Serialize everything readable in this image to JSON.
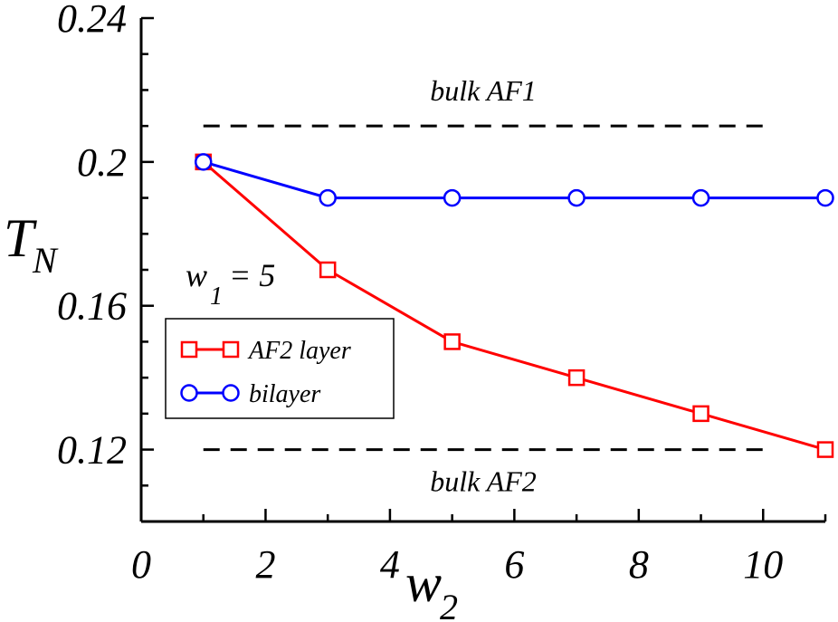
{
  "chart_data": {
    "type": "line",
    "title": "",
    "xlabel": "w",
    "xlabel_sub": "2",
    "ylabel": "T",
    "ylabel_sub": "N",
    "xlim": [
      0,
      11
    ],
    "ylim": [
      0.1,
      0.24
    ],
    "x_ticks": [
      0,
      2,
      4,
      6,
      8,
      10
    ],
    "x_tick_labels": [
      "0",
      "2",
      "4",
      "6",
      "8",
      "10"
    ],
    "y_ticks": [
      0.12,
      0.16,
      0.2,
      0.24
    ],
    "y_tick_labels": [
      "0.12",
      "0.16",
      "0.2",
      "0.24"
    ],
    "grid": false,
    "legend_position": "lower-left",
    "series": [
      {
        "name": "AF2 layer",
        "color": "#ff0000",
        "marker": "square",
        "x": [
          1,
          3,
          5,
          7,
          9,
          11
        ],
        "y": [
          0.2,
          0.17,
          0.15,
          0.14,
          0.13,
          0.12
        ]
      },
      {
        "name": "bilayer",
        "color": "#0000ff",
        "marker": "circle",
        "x": [
          1,
          3,
          5,
          7,
          9,
          11
        ],
        "y": [
          0.2,
          0.19,
          0.19,
          0.19,
          0.19,
          0.19
        ]
      }
    ],
    "reference_lines": [
      {
        "label": "bulk AF1",
        "y": 0.21,
        "x_range": [
          1,
          10
        ]
      },
      {
        "label": "bulk AF2",
        "y": 0.12,
        "x_range": [
          1,
          10
        ]
      }
    ],
    "annotation": {
      "text_main": "w",
      "text_sub": "1",
      "text_rest": " = 5"
    }
  }
}
